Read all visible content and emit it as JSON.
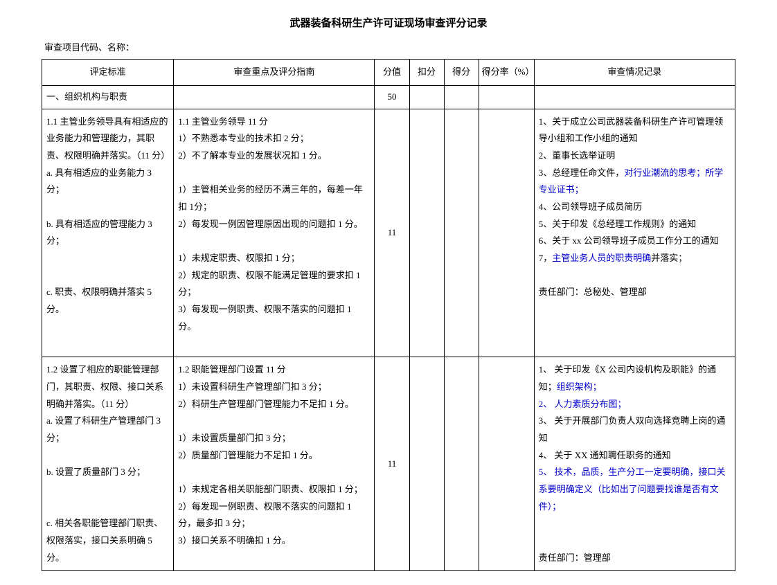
{
  "title": "武器装备科研生产许可证现场审查评分记录",
  "subtitle": "审查项目代码、名称：",
  "headers": {
    "standard": "评定标准",
    "guide": "审查重点及评分指南",
    "score": "分值",
    "deduct": "扣分",
    "gain": "得分",
    "rate": "得分率（%）",
    "record": "审查情况记录"
  },
  "section": {
    "name": "一、组织机构与职责",
    "score": "50"
  },
  "row1": {
    "standard_l1": "1.1 主管业务领导具有相适应的业务能力和管理能力，其职责、权限明确并落实。（11 分）",
    "standard_l2": "a. 具有相适应的业务能力 3分；",
    "standard_l3": "b. 具有相适应的管理能力 3分；",
    "standard_l4": "c. 职责、权限明确并落实 5分。",
    "guide_h": "1.1 主管业务领导 11 分",
    "guide_a1": "1）不熟悉本专业的技术扣 2 分；",
    "guide_a2": "2）不了解本专业的发展状况扣 1 分。",
    "guide_b1": "1）主管相关业务的经历不满三年的，每差一年扣 1分；",
    "guide_b2": "2）每发现一例因管理原因出现的问题扣 1 分。",
    "guide_c1": "1）未规定职责、权限扣 1 分；",
    "guide_c2": "2）规定的职责、权限不能满足管理的要求扣 1 分；",
    "guide_c3": "3）每发现一例职责、权限不落实的问题扣 1 分。",
    "score": "11",
    "rec1": "1、关于成立公司武器装备科研生产许可管理领导小组和工作小组的通知",
    "rec2": "2、董事长选举证明",
    "rec3a": "3、总经理任命文件，",
    "rec3b": "对行业潮流的思考；所学专业证书；",
    "rec4": "4、公司领导班子成员简历",
    "rec5": "5、关于印发《总经理工作规则》的通知",
    "rec6": "6、关于 xx 公司领导班子成员工作分工的通知",
    "rec7a": "7，",
    "rec7b": "主管业务人员的职责明确",
    "rec7c": "并落实；",
    "dept": "责任部门：总秘处、管理部"
  },
  "row2": {
    "standard_l1": "1.2 设置了相应的职能管理部门，其职责、权限、接口关系明确并落实。（11 分）",
    "standard_l2": "a. 设置了科研生产管理部门 3分；",
    "standard_l3": "b. 设置了质量部门 3 分；",
    "standard_l4": "c. 相关各职能管理部门职责、权限落实，接口关系明确 5分。",
    "guide_h": "1.2 职能管理部门设置 11 分",
    "guide_a1": "1）未设置科研生产管理部门扣 3 分；",
    "guide_a2": "2）科研生产管理部门管理能力不足扣 1 分。",
    "guide_b1": "1）未设置质量部门扣 3 分；",
    "guide_b2": "2）质量部门管理能力不足扣 1 分。",
    "guide_c1": "1）未规定各相关职能部门职责、权限扣 1 分；",
    "guide_c2": "2）每发现一例职责、权限不落实的问题扣 1 分，最多扣 3 分；",
    "guide_c3": "3）接口关系不明确扣 1 分。",
    "score": "11",
    "rec1a": "1、 关于印发《X 公司内设机构及职能》的通知；",
    "rec1b": "组织架构；",
    "rec2": "2、 人力素质分布图；",
    "rec3": "3、 关于开展部门负责人双向选择竞聘上岗的通知",
    "rec4": "4、 关于 XX 通知聘任职务的通知",
    "rec5": "5、 技术，品质，生产分工一定要明确，接口关系要明确定义（比如出了问题要找谁是否有文件）；",
    "dept": "责任部门：管理部"
  }
}
